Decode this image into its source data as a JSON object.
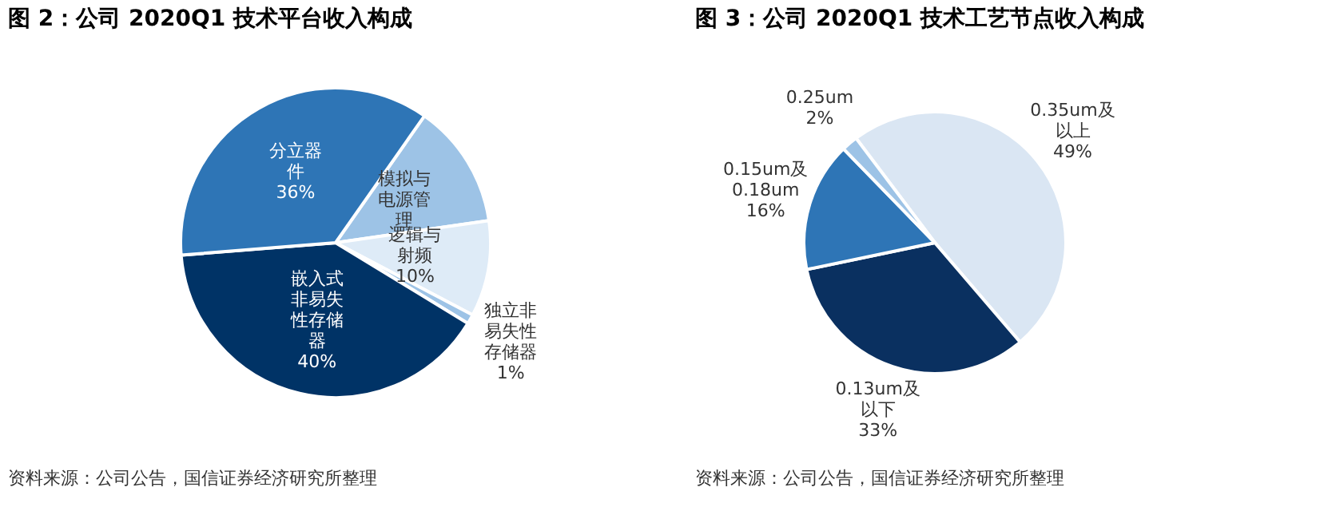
{
  "chart_data": [
    {
      "type": "pie",
      "title": "图 2：公司 2020Q1 技术平台收入构成",
      "categories": [
        "模拟与电源管理",
        "逻辑与射频",
        "独立非易失性存储器",
        "嵌入式非易失性存储器",
        "分立器件"
      ],
      "values": [
        13,
        10,
        1,
        40,
        36
      ],
      "value_labels": [
        null,
        "10%",
        "1%",
        "40%",
        "36%"
      ],
      "colors": [
        "#9dc3e6",
        "#deebf7",
        "#9dc3e6",
        "#003366",
        "#2e75b6"
      ],
      "annotations": [
        "资料来源：公司公告，国信证券经济研究所整理"
      ]
    },
    {
      "type": "pie",
      "title": "图 3：公司 2020Q1 技术工艺节点收入构成",
      "categories": [
        "0.35um及以上",
        "0.13um及以下",
        "0.15um及0.18um",
        "0.25um"
      ],
      "values": [
        49,
        33,
        16,
        2
      ],
      "value_labels": [
        "49%",
        "33%",
        "16%",
        "2%"
      ],
      "colors": [
        "#dae6f3",
        "#0a3060",
        "#2e75b6",
        "#9dc3e6"
      ],
      "annotations": [
        "资料来源：公司公告，国信证券经济研究所整理"
      ]
    }
  ]
}
